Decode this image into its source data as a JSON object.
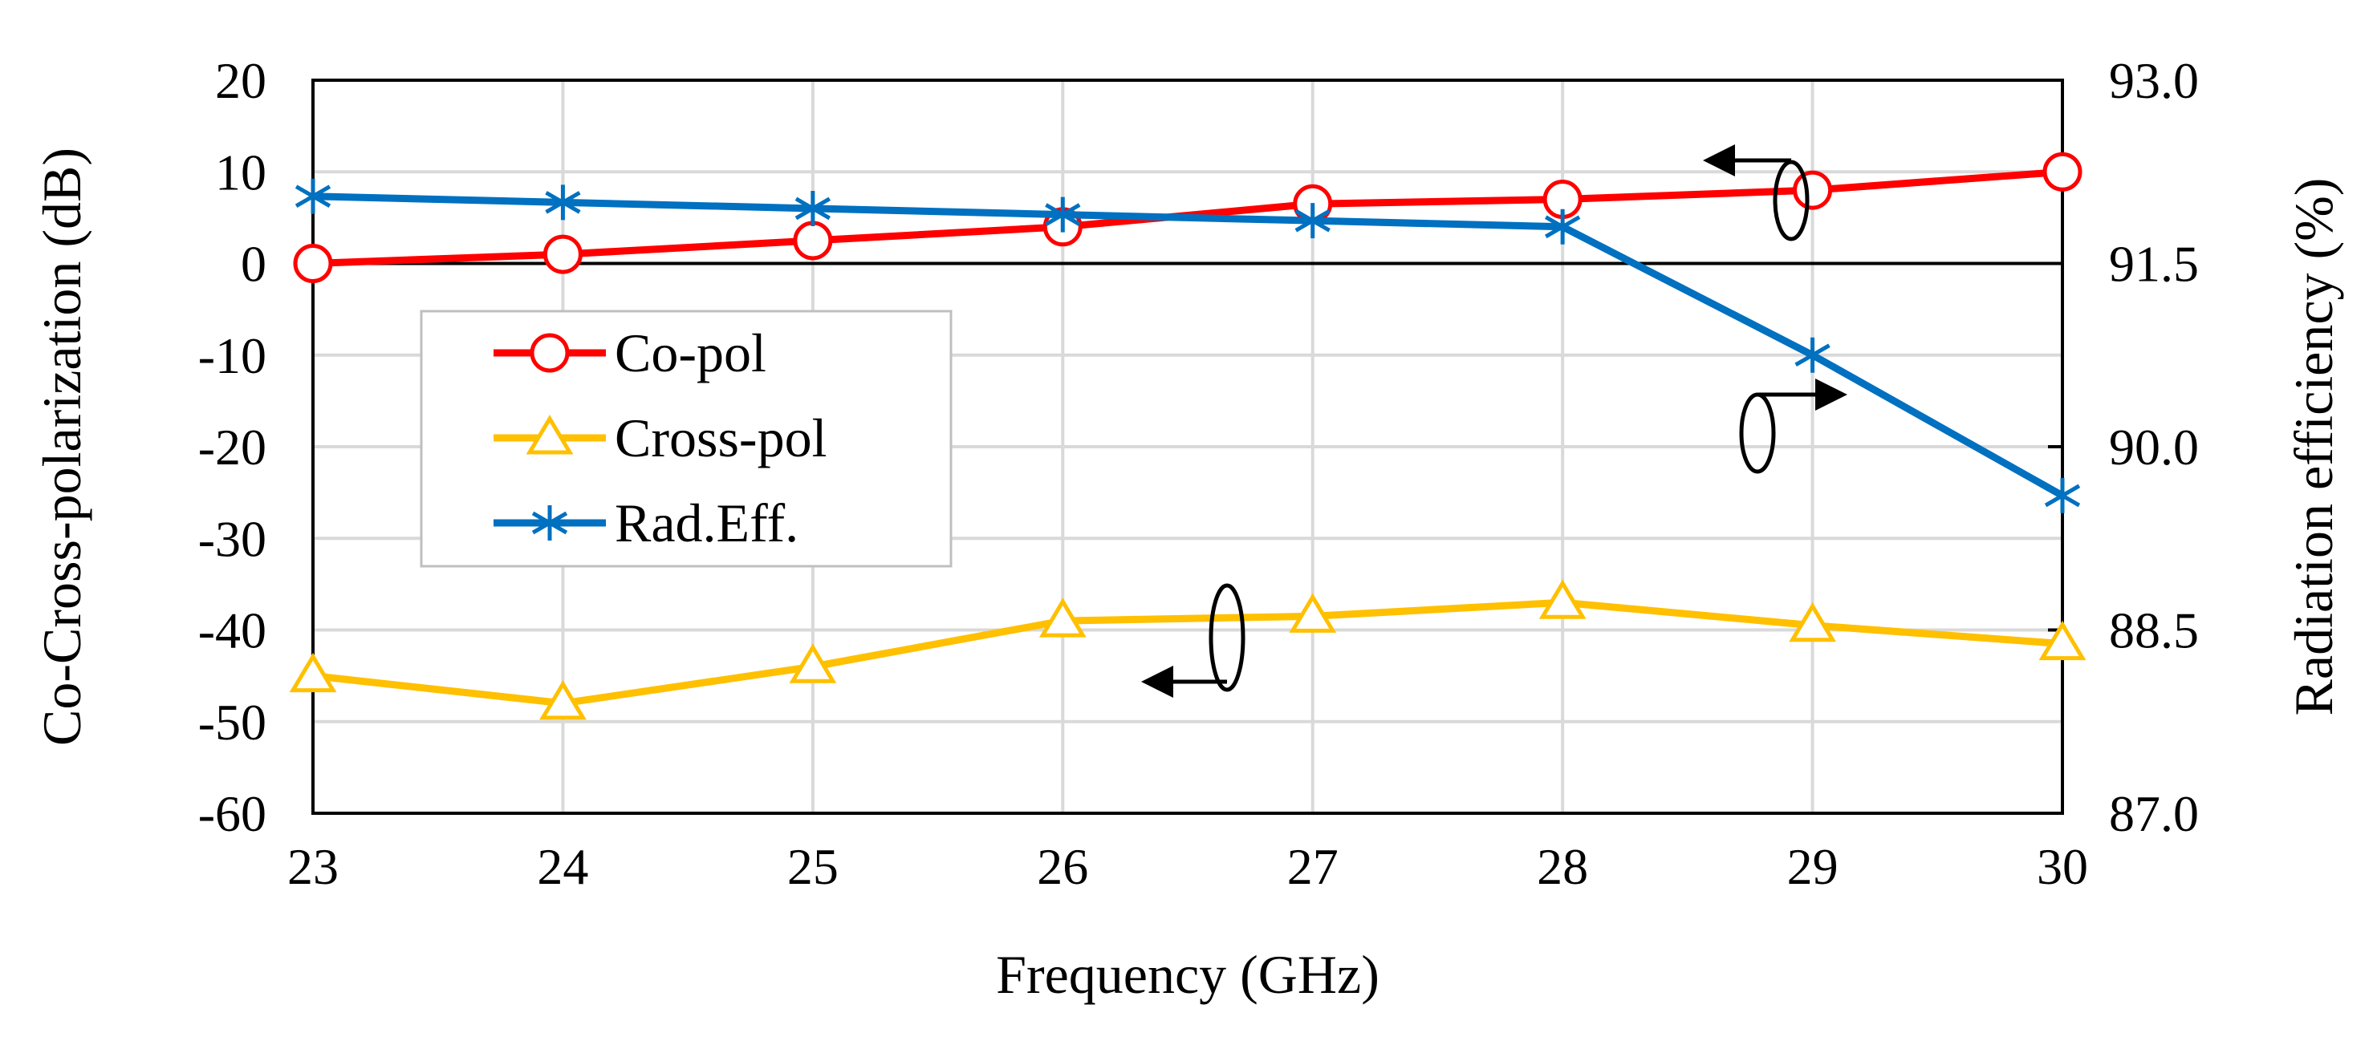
{
  "chart_data": {
    "type": "line",
    "title": "",
    "xlabel": "Frequency (GHz)",
    "ylabel_left": "Co-Cross-polarization (dB)",
    "ylabel_right": "Radiation efficiency (%)",
    "x": [
      23,
      24,
      25,
      26,
      27,
      28,
      29,
      30
    ],
    "x_tick_labels": [
      "23",
      "24",
      "25",
      "26",
      "27",
      "28",
      "29",
      "30"
    ],
    "ylim_left": [
      -60,
      20
    ],
    "y_left_ticks": [
      20,
      10,
      0,
      -10,
      -20,
      -30,
      -40,
      -50,
      -60
    ],
    "y_left_tick_labels": [
      "20",
      "10",
      "0",
      "-10",
      "-20",
      "-30",
      "-40",
      "-50",
      "-60"
    ],
    "ylim_right": [
      87.0,
      93.0
    ],
    "y_right_ticks": [
      93.0,
      91.5,
      90.0,
      88.5,
      87.0
    ],
    "y_right_tick_labels": [
      "93.0",
      "91.5",
      "90.0",
      "88.5",
      "87.0"
    ],
    "grid": true,
    "legend_position": "center-left",
    "series": [
      {
        "name": "Co-pol",
        "axis": "left",
        "color": "#ff0000",
        "marker": "circle",
        "values": [
          0,
          1,
          2.5,
          4,
          6.5,
          7,
          8,
          10
        ]
      },
      {
        "name": "Cross-pol",
        "axis": "left",
        "color": "#ffc000",
        "marker": "triangle",
        "values": [
          -45,
          -48,
          -44,
          -39,
          -38.5,
          -37,
          -39.5,
          -41.5
        ]
      },
      {
        "name": "Rad.Eff.",
        "axis": "right",
        "color": "#0070c0",
        "marker": "asterisk",
        "values": [
          92.05,
          92.0,
          91.95,
          91.9,
          91.85,
          91.8,
          90.75,
          89.6
        ]
      }
    ]
  }
}
